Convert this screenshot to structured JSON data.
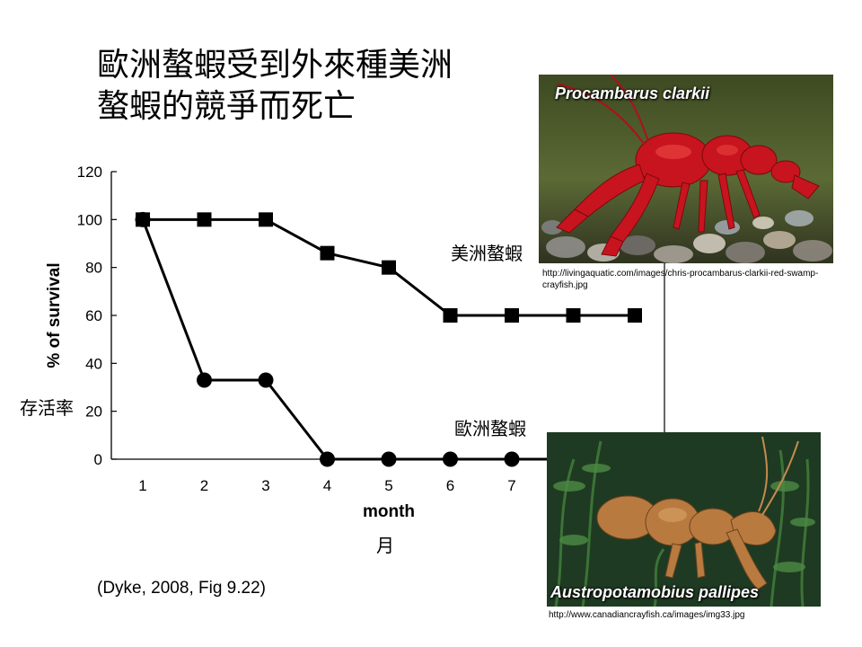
{
  "slide": {
    "title": "歐洲螯蝦受到外來種美洲\n螯蝦的競爭而死亡",
    "citation": "(Dyke, 2008, Fig 9.22)",
    "label_american": "美洲螯蝦",
    "label_european": "歐洲螯蝦",
    "label_survival_zh": "存活率",
    "label_month_zh": "月"
  },
  "photos": {
    "top": {
      "caption": "Procambarus clarkii",
      "url": "http://livingaquatic.com/images/chris-procambarus-clarkii-red-swamp-crayfish.jpg",
      "subject": "red swamp crayfish on gravel"
    },
    "bottom": {
      "caption": "Austropotamobius pallipes",
      "url": "http://www.canadiancrayfish.ca/images/img33.jpg",
      "subject": "white-clawed crayfish among water plants"
    }
  },
  "chart_data": {
    "type": "line",
    "xlabel": "month",
    "ylabel": "% of survival",
    "x": [
      1,
      2,
      3,
      4,
      5,
      6,
      7,
      8,
      9
    ],
    "xticks": [
      "1",
      "2",
      "3",
      "4",
      "5",
      "6",
      "7"
    ],
    "ylim": [
      0,
      120
    ],
    "yticks": [
      0,
      20,
      40,
      60,
      80,
      100,
      120
    ],
    "grid": false,
    "series": [
      {
        "name": "美洲螯蝦",
        "marker": "square",
        "values": [
          100,
          100,
          100,
          86,
          80,
          60,
          60,
          60,
          60
        ]
      },
      {
        "name": "歐洲螯蝦",
        "marker": "circle",
        "values": [
          100,
          33,
          33,
          0,
          0,
          0,
          0,
          0,
          0
        ]
      }
    ]
  }
}
